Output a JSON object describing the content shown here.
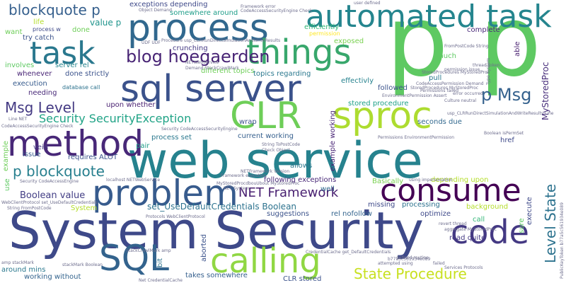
{
  "words": {
    "p_p": "p p",
    "web_service": "web service",
    "system_security": "System Security",
    "process": "process",
    "automated_task": "automated task",
    "sql_server": "sql server",
    "clr": "CLR",
    "sproc": "sproc",
    "things": "things",
    "task": "task",
    "method": "method",
    "problem": "problem",
    "consume": "consume",
    "code": "code",
    "sql": "SQL",
    "calling": "calling",
    "blog_hoegaerden": "blog hoegaerden",
    "blockquote_p_top": "blockquote p",
    "p_blockquote": "p blockquote",
    "msg_level": "Msg Level",
    "security_exception": "Security SecurityException",
    "net_framework": "NET Framework",
    "p_msg": "p Msg",
    "state_procedure": "State Procedure",
    "level_state": "Level State",
    "boolean_value": "Boolean value",
    "set_use_default": "set_UseDefaultCredentials Boolean",
    "value_p": "value p",
    "my_stored_proc": "MyStoredProc",
    "exceptions_depending": "exceptions depending",
    "somewhere_around": "somewhere around",
    "efficiently": "efficiently",
    "permission": "permission",
    "exposed": "exposed",
    "much": "much",
    "complete": "complete",
    "able": "able",
    "pull": "pull",
    "followed": "followed",
    "effectivly": "effectivly",
    "stored_procedure": "stored procedure",
    "seconds_due": "seconds due",
    "href": "href",
    "crunching": "crunching",
    "different_topics": "different topics",
    "topics_regarding": "topics regarding",
    "done_strictly": "done strictly",
    "server_rel": "server rel",
    "upon_whether": "upon whether",
    "database_call": "database call",
    "execution": "execution",
    "involves": "involves",
    "whenever": "whenever",
    "needing": "needing",
    "life": "life",
    "want": "want",
    "process_w": "process w",
    "try_catch": "try catch",
    "done": "done",
    "wrap": "wrap",
    "current_working": "current working",
    "process_set": "process set",
    "pair": "pair",
    "requires_alot": "requires ALOT",
    "vein": "vein",
    "issue": "issue",
    "allows": "allows",
    "following_exceptions": "following exceptions",
    "basically": "Basically",
    "example_working": "example working",
    "depending_upon": "depending upon",
    "background": "background",
    "well": "well",
    "missing": "missing",
    "processing": "processing",
    "suggestions": "suggestions",
    "rel_nofollow": "rel nofollow",
    "optimize": "optimize",
    "call": "call",
    "read_quite": "read quite",
    "execute": "execute",
    "sure": "sure",
    "aborted": "aborted",
    "takes_somewhere": "takes somewhere",
    "clr_stored": "CLR stored",
    "around_mins": "around mins",
    "working_without": "working without",
    "bit": "bit",
    "system": "System",
    "use": "use",
    "example": "example",
    "attempted_using": "attempted using",
    "failed": "failed",
    "defined_routine": "defined routine",
    "revert_thread": "revert thread",
    "aggregate": "aggregate MyStoredProc",
    "services_protocols": "Services Protocols",
    "string_tostring": "String ToPostCode",
    "thread_token": "thread token",
    "type_system": "Type System",
    "permission_issue": "permission issue",
    "error_occurred": "error occurred",
    "culture_neutral": "Culture neutral",
    "framework_error": "Framework error",
    "user_defined": "user defined",
    "code_access": "CodeAccessSecurityEngine Check",
    "object_demand": "Object Demand",
    "udp_udf": "UDF UDF",
    "procedure_usp": "Procedure usp_CLRRunDirectSimulationAndWriteResults",
    "net_web_service": "NETWebService",
    "stack_crawl": "Demand StackCrawlMark",
    "stored_procs": "StoredProcedures MyStoredProc",
    "fromposttcode": "FromPostCode String",
    "permission_demand": "CodeAccessPermission Demand",
    "stored_procedures2": "StoredProcedures MyStoredProc",
    "usp_long": "usp_CLRRunDirectSimulationAndWriteResults Line",
    "env_permission": "EnvironmentPermission Assert",
    "security_code": "Security CodeAccessSecurityEngine",
    "check_object": "Check Object",
    "string_topostcode": "String ToPostCode",
    "permissions_env": "Permissions EnvironmentPermission",
    "boolean_isperm": "Boolean isPermSet",
    "framework_execution": "Framework execution",
    "my_stored_proc_default": "MyStoredProcdbouUbout MyStoredProc",
    "net_system": "NET System",
    "net_framework_ver": "NETFramework Version",
    "localhost_web": "localhost NETWebService",
    "protocols_client": "Protocols WebClientProtocol",
    "credential_cache": "CredentialCache get_DefaultCredentials",
    "web_client_protocol": "WebClientProtocol set_UseDefaultCredentials",
    "string_frompostcode": "String FromPostCode",
    "code_access_demand": "CodeAccessSecurityEngine Check",
    "security_protocols": "Security CodeAccessEngine",
    "net_credential_cache": "Net CredentialCache",
    "stack_crawl_amp": "StackCrawlMark amp",
    "amp_stackmark": "amp stackMark",
    "stackmark_boolean": "stackMark Boolean",
    "hex_token": "b77a5c561934e089",
    "public_key": "PublicKeyToken b77a5c561934e089",
    "permission_failed": "Permissions failed",
    "line_net": "Line NET",
    "using_impersonation": "using impersonation"
  }
}
